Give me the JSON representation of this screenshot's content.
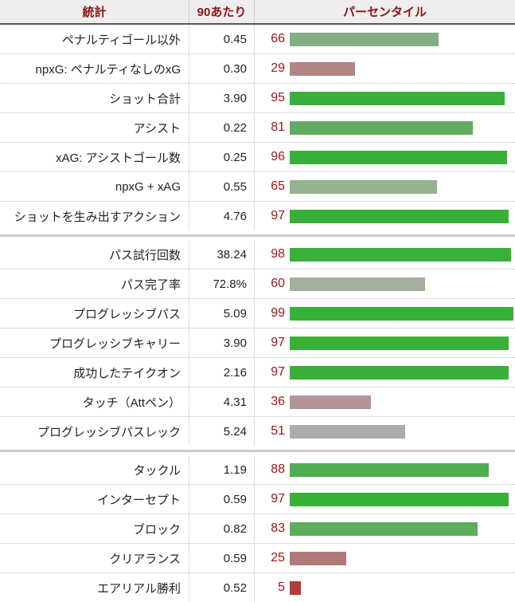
{
  "header": {
    "stat": "統計",
    "per90": "90あたり",
    "percentile": "パーセンタイル"
  },
  "colors": {
    "header_bg": "#eeeeee",
    "header_text": "#8e1212",
    "percentile_text": "#a11616",
    "divider": "#cbcbcb",
    "bar_scale_low": "#b23b3b",
    "bar_scale_mid": "#ababab",
    "bar_scale_high": "#35b235"
  },
  "sections": [
    {
      "rows": [
        {
          "label": "ペナルティゴール以外",
          "per90": "0.45",
          "pct": 66,
          "color": "#84ad84"
        },
        {
          "label": "npxG: ペナルティなしのxG",
          "per90": "0.30",
          "pct": 29,
          "color": "#b28484"
        },
        {
          "label": "ショット合計",
          "per90": "3.90",
          "pct": 95,
          "color": "#3ab03a"
        },
        {
          "label": "アシスト",
          "per90": "0.22",
          "pct": 81,
          "color": "#60ad60"
        },
        {
          "label": "xAG: アシストゴール数",
          "per90": "0.25",
          "pct": 96,
          "color": "#39b039"
        },
        {
          "label": "npxG + xAG",
          "per90": "0.55",
          "pct": 65,
          "color": "#95b18e"
        },
        {
          "label": "ショットを生み出すアクション",
          "per90": "4.76",
          "pct": 97,
          "color": "#38b038"
        }
      ]
    },
    {
      "rows": [
        {
          "label": "パス試行回数",
          "per90": "38.24",
          "pct": 98,
          "color": "#37b137"
        },
        {
          "label": "パス完了率",
          "per90": "72.8%",
          "pct": 60,
          "color": "#a3af9d"
        },
        {
          "label": "プログレッシブパス",
          "per90": "5.09",
          "pct": 99,
          "color": "#35b235"
        },
        {
          "label": "プログレッシブキャリー",
          "per90": "3.90",
          "pct": 97,
          "color": "#38b038"
        },
        {
          "label": "成功したテイクオン",
          "per90": "2.16",
          "pct": 97,
          "color": "#38b038"
        },
        {
          "label": "タッチ（Attペン）",
          "per90": "4.31",
          "pct": 36,
          "color": "#b39595"
        },
        {
          "label": "プログレッシブパスレック",
          "per90": "5.24",
          "pct": 51,
          "color": "#ababab"
        }
      ]
    },
    {
      "rows": [
        {
          "label": "タックル",
          "per90": "1.19",
          "pct": 88,
          "color": "#4ead4e"
        },
        {
          "label": "インターセプト",
          "per90": "0.59",
          "pct": 97,
          "color": "#38b038"
        },
        {
          "label": "ブロック",
          "per90": "0.82",
          "pct": 83,
          "color": "#5cad5c"
        },
        {
          "label": "クリアランス",
          "per90": "0.59",
          "pct": 25,
          "color": "#b17979"
        },
        {
          "label": "エアリアル勝利",
          "per90": "0.52",
          "pct": 5,
          "color": "#b23b3b"
        }
      ]
    }
  ],
  "chart_data": {
    "type": "bar",
    "orientation": "horizontal",
    "title": "",
    "xlabel": "パーセンタイル",
    "xlim": [
      0,
      100
    ],
    "grid": false,
    "categories": [
      "ペナルティゴール以外",
      "npxG: ペナルティなしのxG",
      "ショット合計",
      "アシスト",
      "xAG: アシストゴール数",
      "npxG + xAG",
      "ショットを生み出すアクション",
      "パス試行回数",
      "パス完了率",
      "プログレッシブパス",
      "プログレッシブキャリー",
      "成功したテイクオン",
      "タッチ（Attペン）",
      "プログレッシブパスレック",
      "タックル",
      "インターセプト",
      "ブロック",
      "クリアランス",
      "エアリアル勝利"
    ],
    "series": [
      {
        "name": "パーセンタイル",
        "values": [
          66,
          29,
          95,
          81,
          96,
          65,
          97,
          98,
          60,
          99,
          97,
          97,
          36,
          51,
          88,
          97,
          83,
          25,
          5
        ]
      },
      {
        "name": "90あたり",
        "values": [
          0.45,
          0.3,
          3.9,
          0.22,
          0.25,
          0.55,
          4.76,
          38.24,
          "72.8%",
          5.09,
          3.9,
          2.16,
          4.31,
          5.24,
          1.19,
          0.59,
          0.82,
          0.59,
          0.52
        ]
      }
    ]
  }
}
